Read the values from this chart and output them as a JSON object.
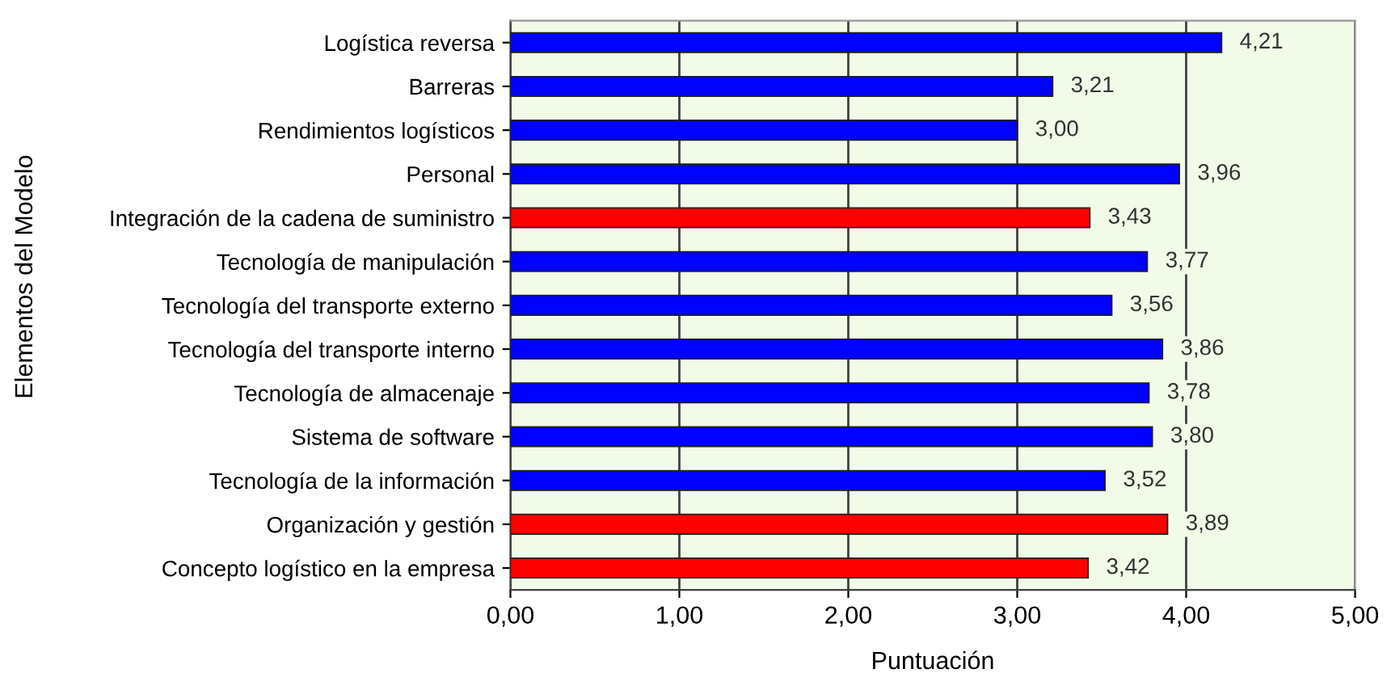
{
  "chart_data": {
    "type": "bar",
    "orientation": "horizontal",
    "xlabel": "Puntuación",
    "ylabel": "Elementos del Modelo",
    "categories": [
      "Logística reversa",
      "Barreras",
      "Rendimientos logísticos",
      "Personal",
      "Integración de la cadena de suministro",
      "Tecnología de manipulación",
      "Tecnología del transporte externo",
      "Tecnología del transporte interno",
      "Tecnología de almacenaje",
      "Sistema de software",
      "Tecnología de la información",
      "Organización y gestión",
      "Concepto logístico en la empresa"
    ],
    "values": [
      4.21,
      3.21,
      3.0,
      3.96,
      3.43,
      3.77,
      3.56,
      3.86,
      3.78,
      3.8,
      3.52,
      3.89,
      3.42
    ],
    "colors": [
      "#0000ff",
      "#0000ff",
      "#0000ff",
      "#0000ff",
      "#ff0000",
      "#0000ff",
      "#0000ff",
      "#0000ff",
      "#0000ff",
      "#0000ff",
      "#0000ff",
      "#ff0000",
      "#ff0000"
    ],
    "value_labels": [
      "4,21",
      "3,21",
      "3,00",
      "3,96",
      "3,43",
      "3,77",
      "3,56",
      "3,86",
      "3,78",
      "3,80",
      "3,52",
      "3,89",
      "3,42"
    ],
    "xlim": [
      0,
      5
    ],
    "xticks": [
      {
        "value": 0,
        "label": "0,00"
      },
      {
        "value": 1,
        "label": "1,00"
      },
      {
        "value": 2,
        "label": "2,00"
      },
      {
        "value": 3,
        "label": "3,00"
      },
      {
        "value": 4,
        "label": "4,00"
      },
      {
        "value": 5,
        "label": "5,00"
      }
    ],
    "grid": "x"
  }
}
